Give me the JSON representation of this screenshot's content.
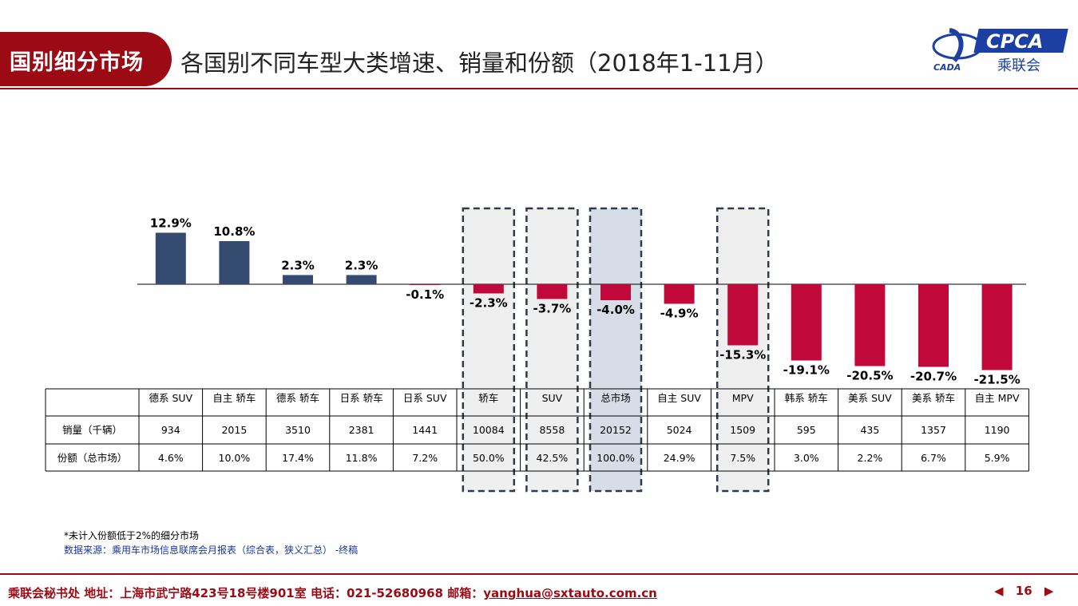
{
  "header": {
    "tag": "国别细分市场",
    "title": "各国别不同车型大类增速、销量和份额（2018年1-11月）",
    "logo_text": "CPCA",
    "logo_sub": "乘联会",
    "logo_small": "CADA"
  },
  "colors": {
    "positive": "#344a6e",
    "negative": "#c0093a",
    "brand": "#9c0a14",
    "highlight_fill": "#d6dde7",
    "dash_fill": "#efefef"
  },
  "chart_data": {
    "type": "bar",
    "categories": [
      "德系 SUV",
      "自主 轿车",
      "德系 轿车",
      "日系 轿车",
      "日系 SUV",
      "轿车",
      "SUV",
      "总市场",
      "自主 SUV",
      "MPV",
      "韩系 轿车",
      "美系 SUV",
      "美系 轿车",
      "自主 MPV"
    ],
    "values": [
      12.9,
      10.8,
      2.3,
      2.3,
      -0.1,
      -2.3,
      -3.7,
      -4.0,
      -4.9,
      -15.3,
      -19.1,
      -20.5,
      -20.7,
      -21.5
    ],
    "value_labels": [
      "12.9%",
      "10.8%",
      "2.3%",
      "2.3%",
      "-0.1%",
      "-2.3%",
      "-3.7%",
      "-4.0%",
      "-4.9%",
      "-15.3%",
      "-19.1%",
      "-20.5%",
      "-20.7%",
      "-21.5%"
    ],
    "highlighted": [
      "轿车",
      "SUV",
      "总市场",
      "MPV"
    ],
    "table": {
      "rows": [
        {
          "label": "销量（千辆）",
          "values": [
            "934",
            "2015",
            "3510",
            "2381",
            "1441",
            "10084",
            "8558",
            "20152",
            "5024",
            "1509",
            "595",
            "435",
            "1357",
            "1190"
          ]
        },
        {
          "label": "份额（总市场）",
          "values": [
            "4.6%",
            "10.0%",
            "17.4%",
            "11.8%",
            "7.2%",
            "50.0%",
            "42.5%",
            "100.0%",
            "24.9%",
            "7.5%",
            "3.0%",
            "2.2%",
            "6.7%",
            "5.9%"
          ]
        }
      ]
    }
  },
  "notes": {
    "footnote": "*未计入份额低于2%的细分市场",
    "source": "数据来源：乘用车市场信息联席会月报表（综合表，狭义汇总）  -终稿"
  },
  "footer": {
    "text": "乘联会秘书处  地址：上海市武宁路423号18号楼901室  电话：021-52680968  邮箱：",
    "email": "yanghua@sxtauto.com.cn",
    "page": "16",
    "prev": "◀",
    "next": "▶"
  }
}
